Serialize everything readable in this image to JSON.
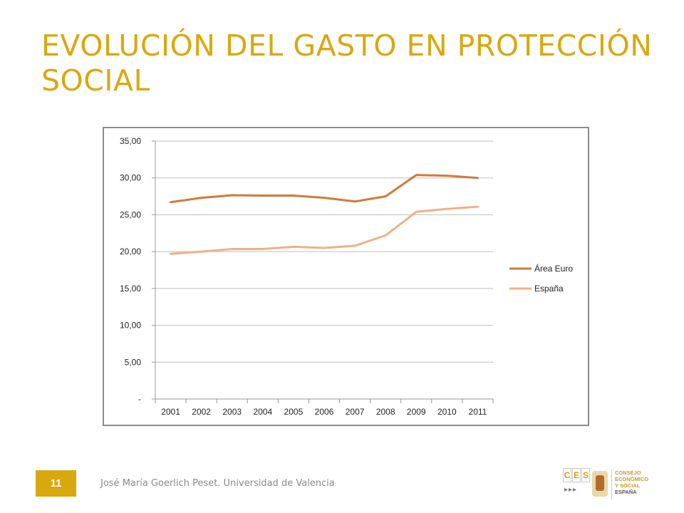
{
  "slide": {
    "title": "EVOLUCIÓN DEL GASTO EN PROTECCIÓN SOCIAL",
    "page_number": "11",
    "footer": "José María Goerlich Peset. Universidad de Valencia"
  },
  "logo": {
    "letters": [
      "C",
      "E",
      "S"
    ],
    "arrows": "▸▸▸",
    "lines": [
      "CONSEJO",
      "ECONÓMICO",
      "Y SOCIAL",
      "ESPAÑA"
    ]
  },
  "colors": {
    "title": "#d9a80f",
    "area_euro": "#d07a3a",
    "espana": "#f0b088"
  },
  "chart_data": {
    "type": "line",
    "x": [
      "2001",
      "2002",
      "2003",
      "2004",
      "2005",
      "2006",
      "2007",
      "2008",
      "2009",
      "2010",
      "2011"
    ],
    "series": [
      {
        "name": "Área Euro",
        "values": [
          26.7,
          27.3,
          27.65,
          27.6,
          27.6,
          27.3,
          26.8,
          27.5,
          30.4,
          30.3,
          30.0
        ]
      },
      {
        "name": "España",
        "values": [
          19.7,
          20.0,
          20.35,
          20.35,
          20.65,
          20.5,
          20.8,
          22.2,
          25.4,
          25.8,
          26.1
        ]
      }
    ],
    "ylim": [
      0,
      35
    ],
    "yticks": [
      {
        "value": 35,
        "label": "35,00"
      },
      {
        "value": 30,
        "label": "30,00"
      },
      {
        "value": 25,
        "label": "25,00"
      },
      {
        "value": 20,
        "label": "20,00"
      },
      {
        "value": 15,
        "label": "15,00"
      },
      {
        "value": 10,
        "label": "10,00"
      },
      {
        "value": 5,
        "label": "5,00"
      },
      {
        "value": 0,
        "label": "-"
      }
    ],
    "grid": true,
    "legend": "right"
  }
}
